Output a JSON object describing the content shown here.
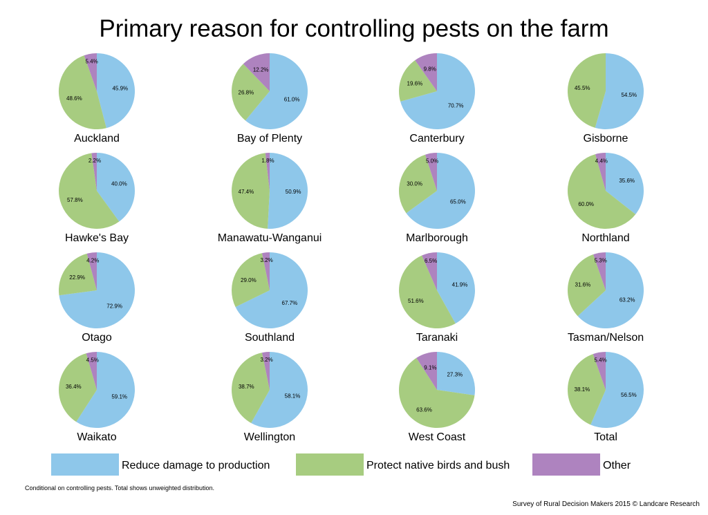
{
  "colors": {
    "reduce": "#8ec7ea",
    "protect": "#a7cc80",
    "other": "#ae83bf"
  },
  "chart_data": {
    "type": "pie",
    "title": "Primary reason for controlling pests on the farm",
    "legend": [
      {
        "name": "Reduce damage to production",
        "color": "#8ec7ea"
      },
      {
        "name": "Protect native birds and bush",
        "color": "#a7cc80"
      },
      {
        "name": "Other",
        "color": "#ae83bf"
      }
    ],
    "legend_position": "bottom",
    "series_order": [
      "Reduce damage to production",
      "Protect native birds and bush",
      "Other"
    ],
    "pies": [
      {
        "name": "Auckland",
        "values": [
          45.9,
          48.6,
          5.4
        ],
        "labels": [
          "45.9%",
          "48.6%",
          "5.4%"
        ]
      },
      {
        "name": "Bay of Plenty",
        "values": [
          61.0,
          26.8,
          12.2
        ],
        "labels": [
          "61.0%",
          "26.8%",
          "12.2%"
        ]
      },
      {
        "name": "Canterbury",
        "values": [
          70.7,
          19.6,
          9.8
        ],
        "labels": [
          "70.7%",
          "19.6%",
          "9.8%"
        ]
      },
      {
        "name": "Gisborne",
        "values": [
          54.5,
          45.5,
          0
        ],
        "labels": [
          "54.5%",
          "45.5%",
          ""
        ]
      },
      {
        "name": "Hawke's Bay",
        "values": [
          40.0,
          57.8,
          2.2
        ],
        "labels": [
          "40.0%",
          "57.8%",
          "2.2%"
        ]
      },
      {
        "name": "Manawatu-Wanganui",
        "values": [
          50.9,
          47.4,
          1.8
        ],
        "labels": [
          "50.9%",
          "47.4%",
          "1.8%"
        ]
      },
      {
        "name": "Marlborough",
        "values": [
          65.0,
          30.0,
          5.0
        ],
        "labels": [
          "65.0%",
          "30.0%",
          "5.0%"
        ]
      },
      {
        "name": "Northland",
        "values": [
          35.6,
          60.0,
          4.4
        ],
        "labels": [
          "35.6%",
          "60.0%",
          "4.4%"
        ]
      },
      {
        "name": "Otago",
        "values": [
          72.9,
          22.9,
          4.2
        ],
        "labels": [
          "72.9%",
          "22.9%",
          "4.2%"
        ]
      },
      {
        "name": "Southland",
        "values": [
          67.7,
          29.0,
          3.2
        ],
        "labels": [
          "67.7%",
          "29.0%",
          "3.2%"
        ]
      },
      {
        "name": "Taranaki",
        "values": [
          41.9,
          51.6,
          6.5
        ],
        "labels": [
          "41.9%",
          "51.6%",
          "6.5%"
        ]
      },
      {
        "name": "Tasman/Nelson",
        "values": [
          63.2,
          31.6,
          5.3
        ],
        "labels": [
          "63.2%",
          "31.6%",
          "5.3%"
        ]
      },
      {
        "name": "Waikato",
        "values": [
          59.1,
          36.4,
          4.5
        ],
        "labels": [
          "59.1%",
          "36.4%",
          "4.5%"
        ]
      },
      {
        "name": "Wellington",
        "values": [
          58.1,
          38.7,
          3.2
        ],
        "labels": [
          "58.1%",
          "38.7%",
          "3.2%"
        ]
      },
      {
        "name": "West Coast",
        "values": [
          27.3,
          63.6,
          9.1
        ],
        "labels": [
          "27.3%",
          "63.6%",
          "9.1%"
        ]
      },
      {
        "name": "Total",
        "values": [
          56.5,
          38.1,
          5.4
        ],
        "labels": [
          "56.5%",
          "38.1%",
          "5.4%"
        ]
      }
    ]
  },
  "footnote": "Conditional on controlling pests. Total shows unweighted distribution.",
  "source": "Survey of Rural Decision Makers 2015 © Landcare Research"
}
